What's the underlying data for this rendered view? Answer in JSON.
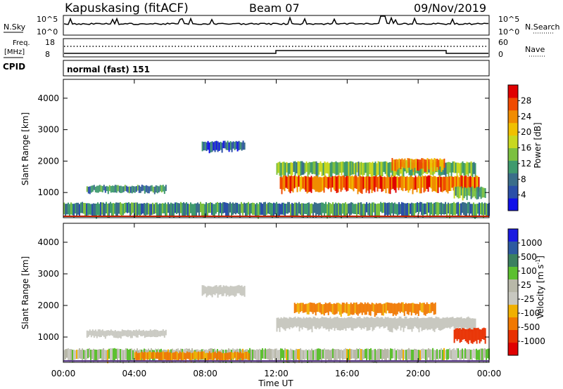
{
  "header": {
    "station": "Kapuskasing (fitACF)",
    "beam": "Beam 07",
    "date": "09/Nov/2019"
  },
  "top_panels": {
    "nsky_label": "N.Sky",
    "nsky_ticks": [
      "10^5",
      "10^0"
    ],
    "nsearch_label": "N.Search",
    "nsearch_ticks": [
      "10^5",
      "10^0"
    ],
    "freq_label": "Freq.",
    "freq_unit": "[MHz]",
    "freq_ticks": [
      "18",
      "8"
    ],
    "nave_label": "Nave",
    "nave_ticks": [
      "60",
      "0"
    ],
    "cpid_label": "CPID",
    "cpid_value": "normal (fast) 151"
  },
  "colors": {
    "power_scale": [
      "#1010e8",
      "#2a4fa8",
      "#3a6e8a",
      "#3f9a6e",
      "#7cc040",
      "#c8d820",
      "#f0c000",
      "#f08c00",
      "#f04a00",
      "#e00000"
    ],
    "velocity_scale": [
      "#1a1ae0",
      "#2d5aa0",
      "#3b8060",
      "#5cc030",
      "#b8b8a8",
      "#c8c8c0",
      "#f0b000",
      "#f07800",
      "#e83000",
      "#e00000"
    ]
  },
  "chart_data": [
    {
      "type": "heatmap",
      "title": "",
      "xlabel": "Time UT",
      "ylabel": "Slant Range [km]",
      "x_ticks": [
        "00:00",
        "04:00",
        "08:00",
        "12:00",
        "16:00",
        "20:00",
        "00:00"
      ],
      "y_ticks": [
        "1000",
        "2000",
        "3000",
        "4000"
      ],
      "ylim": [
        200,
        4600
      ],
      "xlim_hours": [
        0,
        24
      ],
      "colorbar_label": "Power [dB]",
      "colorbar_ticks": [
        "4",
        "8",
        "12",
        "16",
        "20",
        "24",
        "28"
      ],
      "colorbar_range": [
        0,
        32
      ],
      "echo_regions": [
        {
          "t0": 0.0,
          "t1": 0.6,
          "r0": 380,
          "r1": 500,
          "value": 28
        },
        {
          "t0": 0.0,
          "t1": 24.0,
          "r0": 220,
          "r1": 700,
          "value": 10
        },
        {
          "t0": 1.3,
          "t1": 5.8,
          "r0": 1000,
          "r1": 1250,
          "value": 10
        },
        {
          "t0": 7.8,
          "t1": 10.2,
          "r0": 2300,
          "r1": 2650,
          "value": 6
        },
        {
          "t0": 12.0,
          "t1": 23.2,
          "r0": 1500,
          "r1": 2000,
          "value": 14
        },
        {
          "t0": 12.2,
          "t1": 23.4,
          "r0": 1000,
          "r1": 1550,
          "value": 26
        },
        {
          "t0": 18.5,
          "t1": 21.5,
          "r0": 1700,
          "r1": 2100,
          "value": 24
        },
        {
          "t0": 22.0,
          "t1": 23.8,
          "r0": 800,
          "r1": 1200,
          "value": 12
        }
      ]
    },
    {
      "type": "heatmap",
      "title": "",
      "xlabel": "Time UT",
      "ylabel": "Slant Range [km]",
      "x_ticks": [
        "00:00",
        "04:00",
        "08:00",
        "12:00",
        "16:00",
        "20:00",
        "00:00"
      ],
      "y_ticks": [
        "1000",
        "2000",
        "3000",
        "4000"
      ],
      "ylim": [
        200,
        4600
      ],
      "xlim_hours": [
        0,
        24
      ],
      "colorbar_label": "Velocity [m s^-1]",
      "colorbar_ticks": [
        "1000",
        "500",
        "100",
        "25",
        "-25",
        "-100",
        "-500",
        "-1000"
      ],
      "echo_regions": [
        {
          "t0": 0.0,
          "t1": 24.0,
          "r0": 220,
          "r1": 650,
          "value": 60
        },
        {
          "t0": 4.0,
          "t1": 10.5,
          "r0": 250,
          "r1": 550,
          "value": -150
        },
        {
          "t0": 1.3,
          "t1": 5.8,
          "r0": 1000,
          "r1": 1250,
          "value": 0
        },
        {
          "t0": 7.8,
          "t1": 10.2,
          "r0": 2300,
          "r1": 2650,
          "value": 0
        },
        {
          "t0": 12.0,
          "t1": 23.2,
          "r0": 1200,
          "r1": 1650,
          "value": 0
        },
        {
          "t0": 13.0,
          "t1": 21.0,
          "r0": 1700,
          "r1": 2100,
          "value": -150
        },
        {
          "t0": 22.0,
          "t1": 23.8,
          "r0": 800,
          "r1": 1300,
          "value": -400
        }
      ]
    }
  ]
}
